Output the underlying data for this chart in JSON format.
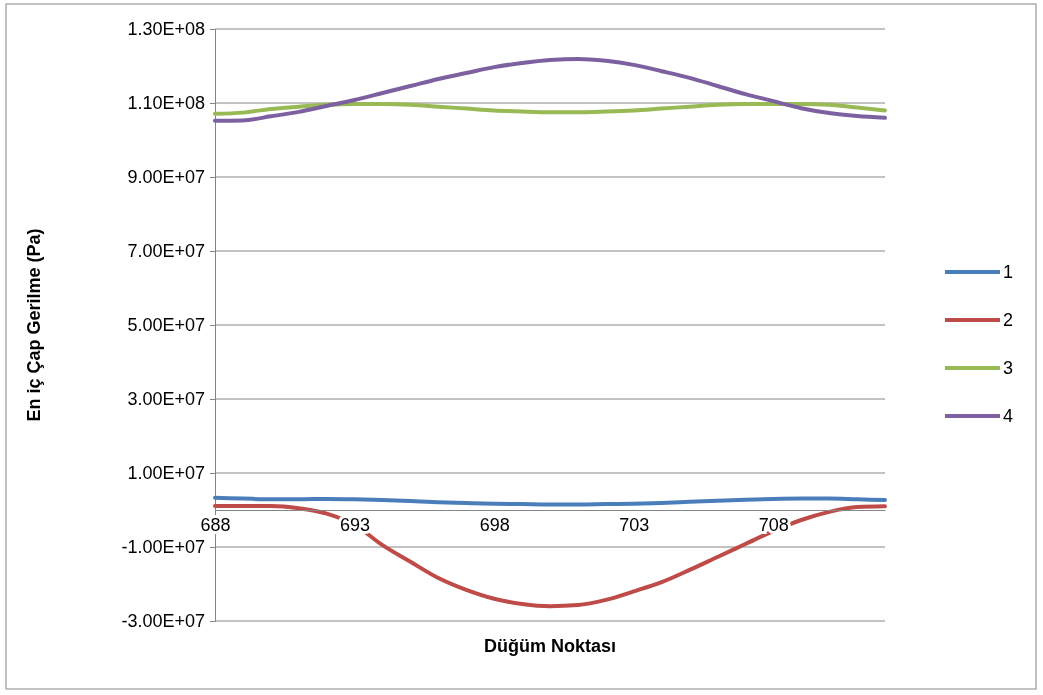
{
  "chart_data": {
    "type": "line",
    "xlabel": "Düğüm Noktası",
    "ylabel": "En iç Çap Gerilme (Pa)",
    "categories": [
      "688",
      null,
      null,
      null,
      null,
      "693",
      null,
      null,
      null,
      null,
      "698",
      null,
      null,
      null,
      null,
      "703",
      null,
      null,
      null,
      null,
      "708",
      null,
      null,
      null,
      null
    ],
    "ylim": [
      -30000000,
      130000000
    ],
    "yticks": [
      {
        "value": -30000000,
        "label": "-3.00E+07"
      },
      {
        "value": -10000000,
        "label": "-1.00E+07"
      },
      {
        "value": 10000000,
        "label": "1.00E+07"
      },
      {
        "value": 30000000,
        "label": "3.00E+07"
      },
      {
        "value": 50000000,
        "label": "5.00E+07"
      },
      {
        "value": 70000000,
        "label": "7.00E+07"
      },
      {
        "value": 90000000,
        "label": "9.00E+07"
      },
      {
        "value": 110000000,
        "label": "1.10E+08"
      },
      {
        "value": 130000000,
        "label": "1.30E+08"
      }
    ],
    "grid": "y",
    "legend": "right",
    "marker": "none",
    "line_style": "solid",
    "series": [
      {
        "name": "1",
        "color": "#4a7ebb",
        "values": [
          3300000,
          3100000,
          2900000,
          2900000,
          3000000,
          2900000,
          2700000,
          2400000,
          2100000,
          1900000,
          1700000,
          1600000,
          1500000,
          1500000,
          1600000,
          1700000,
          1900000,
          2200000,
          2500000,
          2800000,
          3000000,
          3100000,
          3100000,
          2900000,
          2700000
        ]
      },
      {
        "name": "2",
        "color": "#be4b48",
        "values": [
          1100000,
          1100000,
          1100000,
          500000,
          -1000000,
          -4000000,
          -9500000,
          -14000000,
          -18400000,
          -21600000,
          -24000000,
          -25400000,
          -26000000,
          -25700000,
          -24300000,
          -22000000,
          -19500000,
          -16200000,
          -12700000,
          -9200000,
          -5700000,
          -2700000,
          -500000,
          800000,
          1000000
        ]
      },
      {
        "name": "3",
        "color": "#98b954",
        "values": [
          107100000,
          107400000,
          108400000,
          109000000,
          109500000,
          109700000,
          109700000,
          109500000,
          109000000,
          108500000,
          108000000,
          107700000,
          107500000,
          107500000,
          107700000,
          108000000,
          108500000,
          109000000,
          109500000,
          109700000,
          109700000,
          109700000,
          109500000,
          108800000,
          108000000
        ]
      },
      {
        "name": "4",
        "color": "#7d60a0",
        "values": [
          105200000,
          105300000,
          106400000,
          107600000,
          109200000,
          110800000,
          112700000,
          114600000,
          116500000,
          118100000,
          119700000,
          120800000,
          121600000,
          121900000,
          121400000,
          120300000,
          118600000,
          116800000,
          114600000,
          112400000,
          110500000,
          108600000,
          107300000,
          106500000,
          106000000
        ]
      }
    ]
  }
}
